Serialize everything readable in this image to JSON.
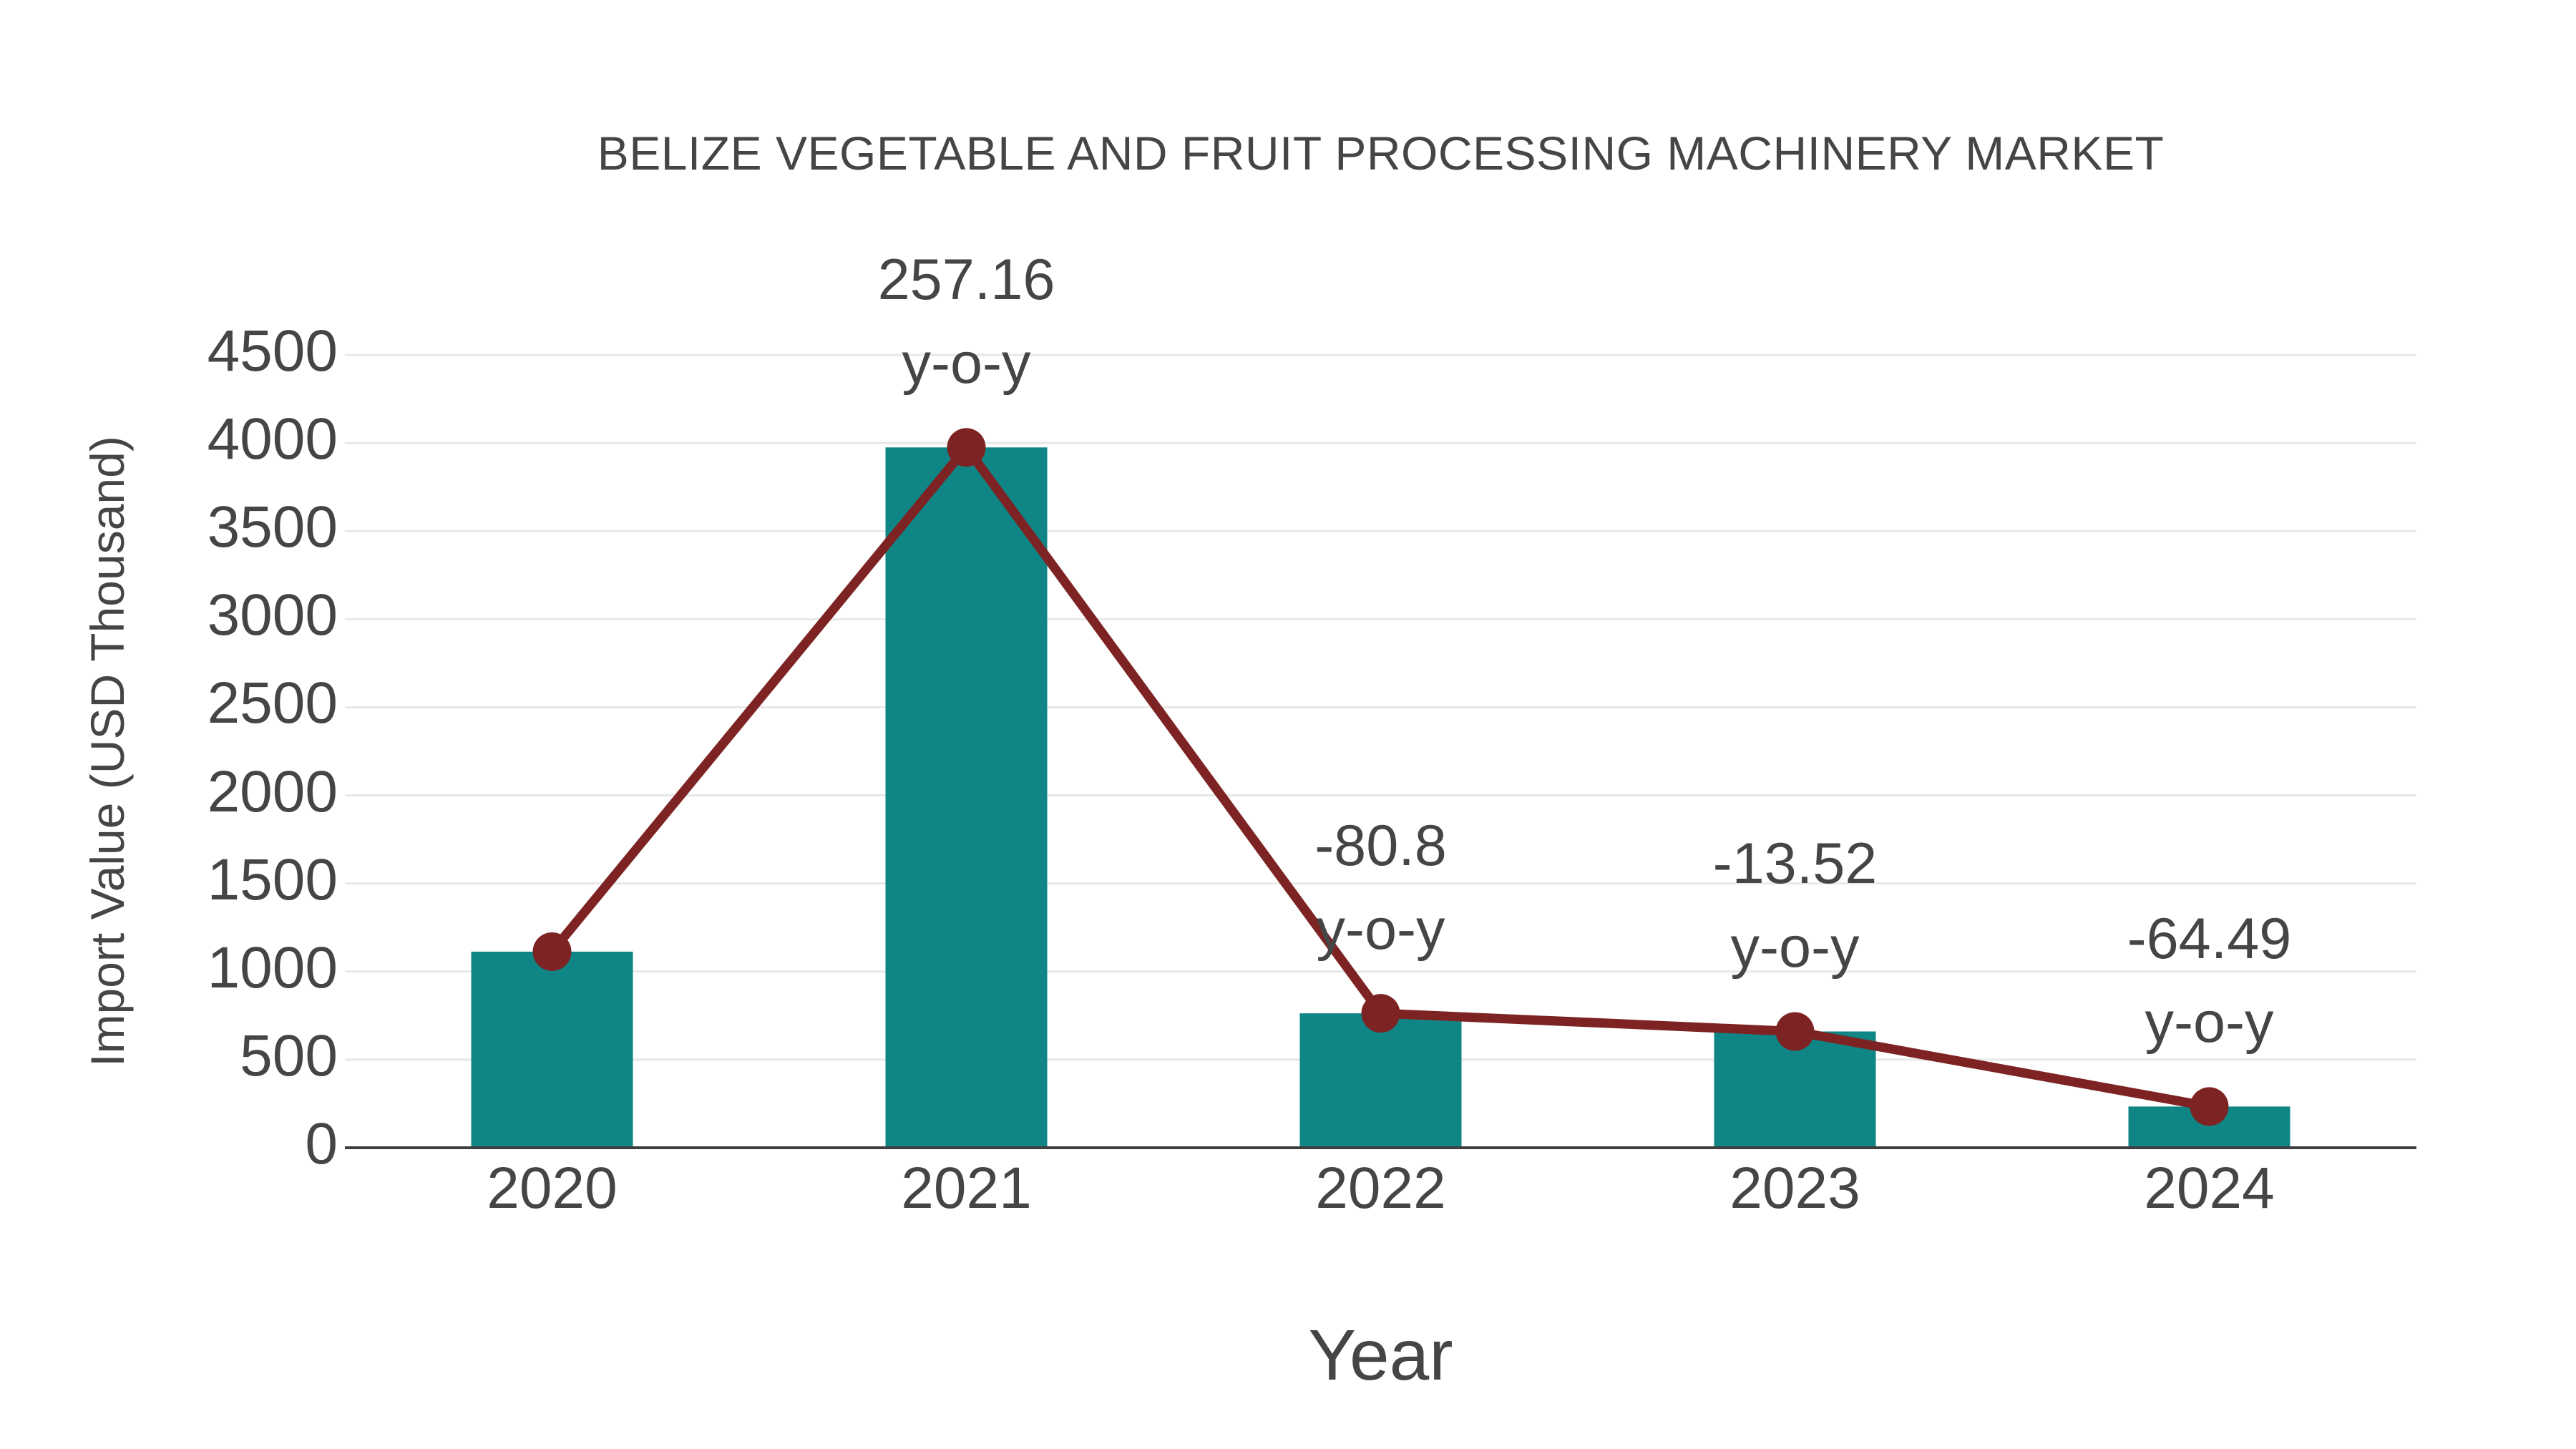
{
  "title": "BELIZE VEGETABLE AND FRUIT PROCESSING MACHINERY MARKET",
  "chart_data": {
    "type": "bar",
    "title": "BELIZE VEGETABLE AND FRUIT PROCESSING MACHINERY MARKET",
    "categories": [
      "2020",
      "2021",
      "2022",
      "2023",
      "2024"
    ],
    "values": [
      1113,
      3975,
      763,
      660,
      234
    ],
    "series": [
      {
        "name": "Import Value (USD Thousand)",
        "type": "bar",
        "values": [
          1113,
          3975,
          763,
          660,
          234
        ]
      },
      {
        "name": "y-o-y trend line",
        "type": "line+markers",
        "values": [
          1113,
          3975,
          763,
          660,
          234
        ]
      }
    ],
    "annotations": [
      {
        "category": "2021",
        "category_index": 1,
        "value": "257.16",
        "unit": "y-o-y"
      },
      {
        "category": "2022",
        "category_index": 2,
        "value": "-80.8",
        "unit": "y-o-y"
      },
      {
        "category": "2023",
        "category_index": 3,
        "value": "-13.52",
        "unit": "y-o-y"
      },
      {
        "category": "2024",
        "category_index": 4,
        "value": "-64.49",
        "unit": "y-o-y"
      }
    ],
    "xlabel": "Year",
    "ylabel": "Import Value (USD Thousand)",
    "ylim": [
      0,
      4500
    ],
    "yticks": [
      "0",
      "500",
      "1000",
      "1500",
      "2000",
      "2500",
      "3000",
      "3500",
      "4000",
      "4500"
    ],
    "grid": true,
    "legend_position": "none",
    "colors": {
      "bar": "#0F8585",
      "line": "#7E2323",
      "marker": "#7E2323",
      "text": "#454545",
      "grid": "#E8E8E8",
      "axis": "#3F3F3F",
      "background": "#FFFFFF"
    }
  }
}
